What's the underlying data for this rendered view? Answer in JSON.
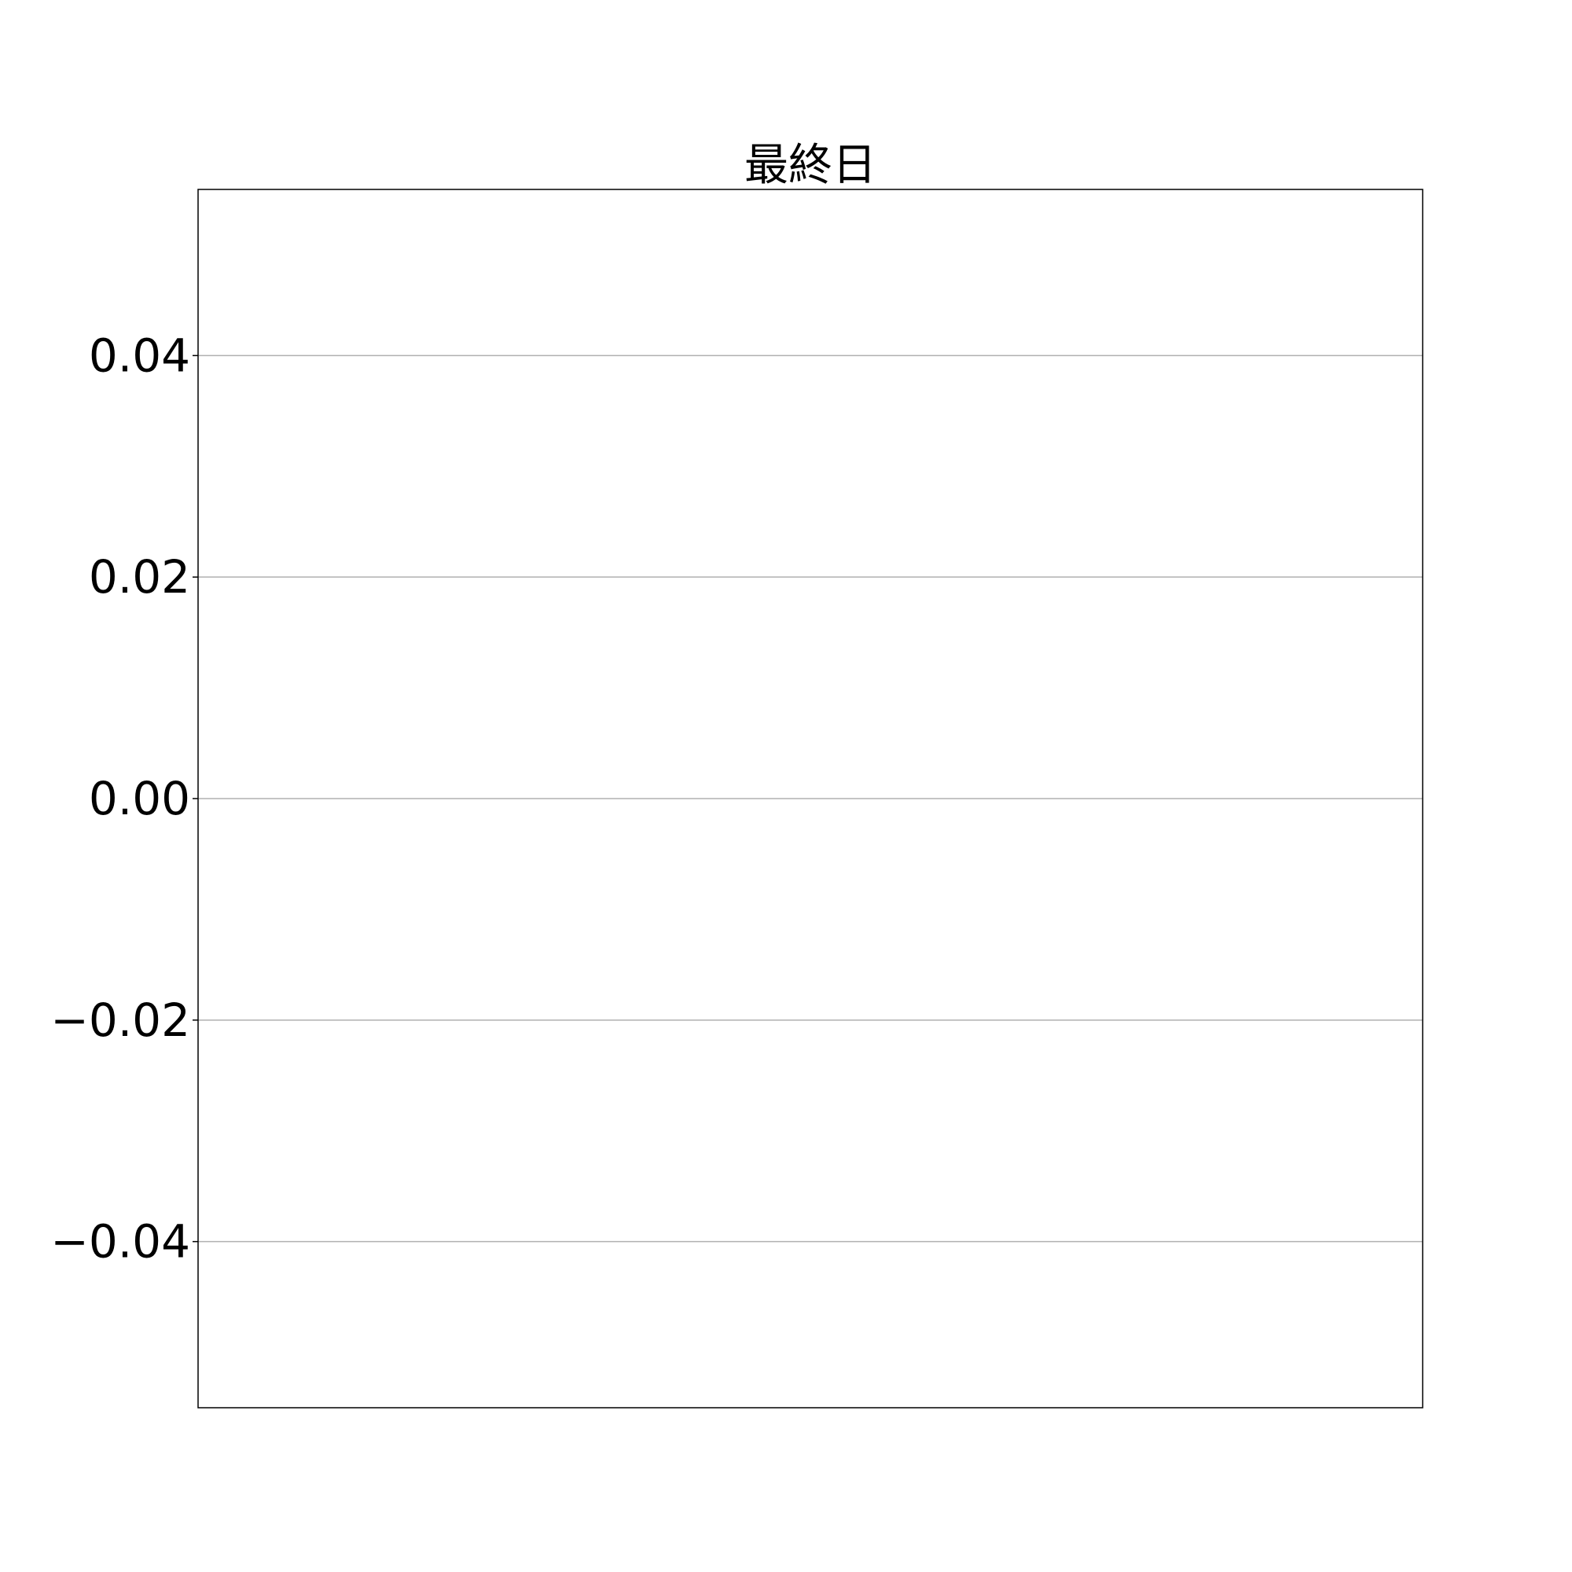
{
  "chart_data": {
    "type": "line",
    "title": "最終日",
    "xlabel": "",
    "ylabel": "",
    "ylim": [
      -0.055,
      0.055
    ],
    "yticks": [
      0.04,
      0.02,
      0.0,
      -0.02,
      -0.04
    ],
    "ytick_labels": [
      "0.04",
      "0.02",
      "0.00",
      "−0.02",
      "−0.04"
    ],
    "x": [],
    "series": [],
    "grid": "horizontal",
    "legend": "none"
  }
}
